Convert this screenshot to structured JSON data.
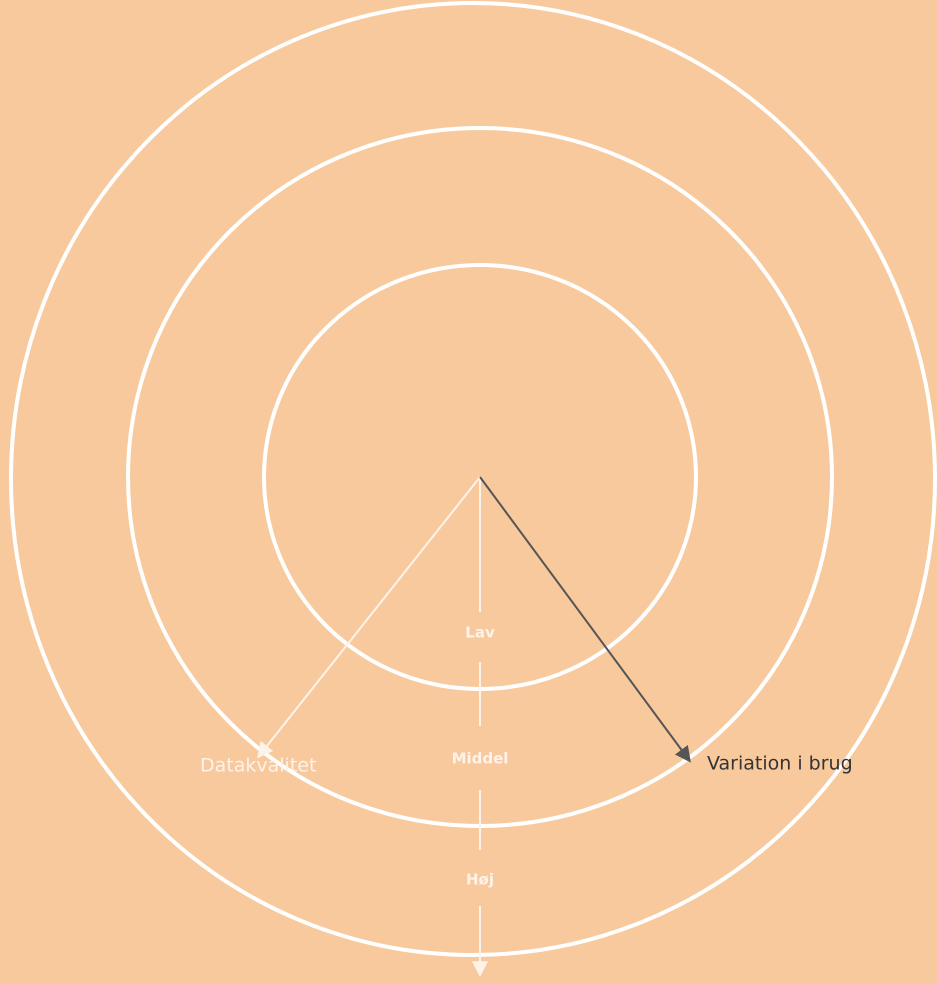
{
  "levels": [
    "Lav",
    "Middel",
    "Høj"
  ],
  "axes": {
    "left": "Datakvalitet",
    "right": "Variation i brug"
  }
}
